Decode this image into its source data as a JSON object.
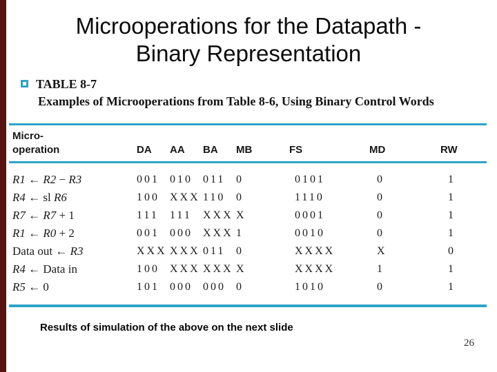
{
  "slide": {
    "title_line1": "Microoperations for the Datapath -",
    "title_line2": "Binary Representation",
    "footnote": "Results of simulation of the above on the next slide",
    "page_number": "26",
    "accent_color": "#2ea3c9",
    "sidebar_color": "#571410"
  },
  "table": {
    "label": "TABLE 8-7",
    "caption": "Examples of Microoperations from Table 8-6, Using Binary Control Words",
    "header": {
      "op_line1": "Micro-",
      "op_line2": "operation",
      "cols": [
        "DA",
        "AA",
        "BA",
        "MB",
        "FS",
        "MD",
        "RW"
      ]
    },
    "rows": [
      [
        "R1 ← R2 − R3",
        "001",
        "010",
        "011",
        "0",
        "0101",
        "0",
        "1"
      ],
      [
        "R4 ← sl R6",
        "100",
        "XXX",
        "110",
        "0",
        "1110",
        "0",
        "1"
      ],
      [
        "R7 ← R7 + 1",
        "111",
        "111",
        "XXX",
        "X",
        "0001",
        "0",
        "1"
      ],
      [
        "R1 ← R0 + 2",
        "001",
        "000",
        "XXX",
        "1",
        "0010",
        "0",
        "1"
      ],
      [
        "Data out ← R3",
        "XXX",
        "XXX",
        "011",
        "0",
        "XXXX",
        "X",
        "0"
      ],
      [
        "R4 ← Data in",
        "100",
        "XXX",
        "XXX",
        "X",
        "XXXX",
        "1",
        "1"
      ],
      [
        "R5 ← 0",
        "101",
        "000",
        "000",
        "0",
        "1010",
        "0",
        "1"
      ]
    ]
  }
}
